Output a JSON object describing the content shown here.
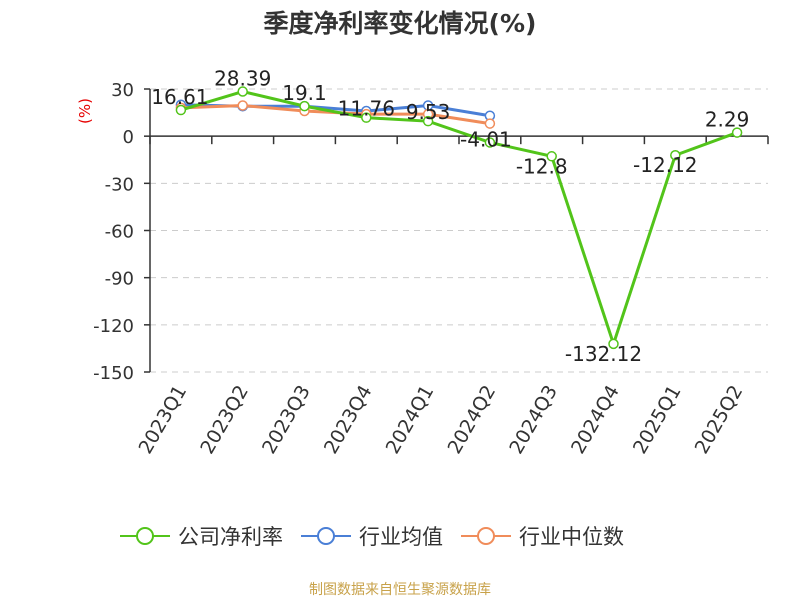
{
  "chart_data": {
    "type": "line",
    "title": "季度净利率变化情况(%)",
    "ylabel": "(%)",
    "categories": [
      "2023Q1",
      "2023Q2",
      "2023Q3",
      "2023Q4",
      "2024Q1",
      "2024Q2",
      "2024Q3",
      "2024Q4",
      "2025Q1",
      "2025Q2"
    ],
    "yticks": [
      30,
      0,
      -30,
      -60,
      -90,
      -120,
      -150
    ],
    "ylim": [
      -150,
      30
    ],
    "grid": true,
    "legend_position": "bottom",
    "series": [
      {
        "name": "公司净利率",
        "color": "#52c41a",
        "values": [
          16.61,
          28.39,
          19.1,
          11.76,
          9.53,
          -4.01,
          -12.8,
          -132.12,
          -12.12,
          2.29
        ],
        "labels": [
          "16.61",
          "28.39",
          "19.1",
          "11.76",
          "9.53",
          "-4.01",
          "-12.8",
          "-132.12",
          "-12.12",
          "2.29"
        ]
      },
      {
        "name": "行业均值",
        "color": "#4a7fd6",
        "values": [
          20,
          19,
          19,
          16,
          19.5,
          13,
          null,
          null,
          null,
          null
        ]
      },
      {
        "name": "行业中位数",
        "color": "#f08c5a",
        "values": [
          18,
          19.5,
          16,
          14,
          14,
          8,
          null,
          null,
          null,
          null
        ]
      }
    ]
  },
  "source": "制图数据来自恒生聚源数据库"
}
